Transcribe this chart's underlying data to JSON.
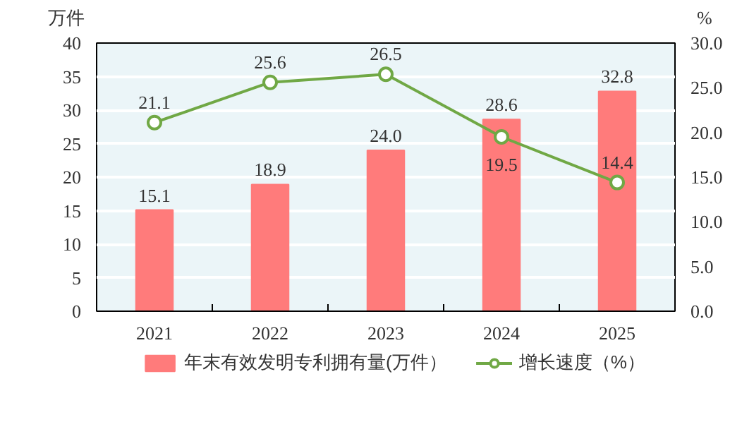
{
  "chart_data": {
    "type": "bar",
    "categories": [
      "2021",
      "2022",
      "2023",
      "2024",
      "2025"
    ],
    "ylabel": "万件",
    "y2label": "%",
    "series": [
      {
        "name": "年末有效发明专利拥有量(万件）",
        "color": "#ff7b7b",
        "values": [
          15.1,
          18.9,
          24.0,
          28.6,
          32.8
        ],
        "value_labels": [
          "15.1",
          "18.9",
          "24.0",
          "28.6",
          "32.8"
        ]
      },
      {
        "name": "增长速度（%）",
        "type": "line",
        "axis": "y2",
        "color": "#70a845",
        "marker": "circle",
        "line_style": "solid",
        "values": [
          21.1,
          25.6,
          26.5,
          19.5,
          14.4
        ],
        "value_labels": [
          "21.1",
          "25.6",
          "26.5",
          "19.5",
          "14.4"
        ]
      }
    ],
    "ylim": [
      0,
      40
    ],
    "yticks": [
      0,
      5,
      10,
      15,
      20,
      25,
      30,
      35,
      40
    ],
    "y2lim": [
      0,
      30
    ],
    "y2ticks": [
      {
        "value": 0,
        "label": "0.0"
      },
      {
        "value": 5,
        "label": "5.0"
      },
      {
        "value": 10,
        "label": "10.0"
      },
      {
        "value": 15,
        "label": "15.0"
      },
      {
        "value": 20,
        "label": "20.0"
      },
      {
        "value": 25,
        "label": "25.0"
      },
      {
        "value": 30,
        "label": "30.0"
      }
    ],
    "grid": "y",
    "legend": "bottom"
  }
}
